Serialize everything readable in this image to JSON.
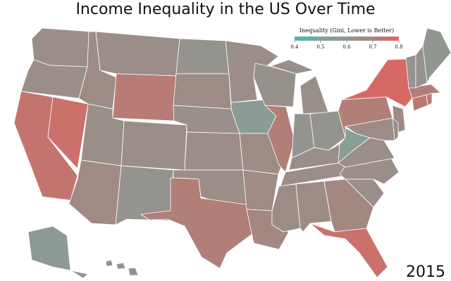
{
  "chart_data": {
    "type": "choropleth",
    "title": "Income Inequality in the US Over Time",
    "legend_title": "Inequality (Gini, Lower is Better)",
    "year": "2015",
    "xlim": [
      0.4,
      0.8
    ],
    "xticks": [
      0.4,
      0.5,
      0.6,
      0.7,
      0.8
    ],
    "colors": [
      "#4db6aa",
      "#7fa59c",
      "#919691",
      "#a5857f",
      "#e4625e"
    ],
    "values": [
      0.65,
      0.65,
      0.75,
      0.76,
      0.66,
      0.65,
      0.73,
      0.64,
      0.67,
      0.65,
      0.62,
      0.62,
      0.66,
      0.64,
      0.65,
      0.65,
      0.72,
      0.65,
      0.57,
      0.66,
      0.67,
      0.69,
      0.63,
      0.72,
      0.64,
      0.62,
      0.62,
      0.64,
      0.65,
      0.66,
      0.66,
      0.69,
      0.76,
      0.64,
      0.65,
      0.65,
      0.55,
      0.66,
      0.78,
      0.72,
      0.67,
      0.66,
      0.74,
      0.72,
      0.72,
      0.62,
      0.62,
      0.6,
      0.58,
      0.64
    ]
  }
}
